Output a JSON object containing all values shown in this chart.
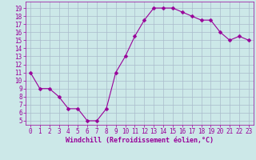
{
  "x": [
    0,
    1,
    2,
    3,
    4,
    5,
    6,
    7,
    8,
    9,
    10,
    11,
    12,
    13,
    14,
    15,
    16,
    17,
    18,
    19,
    20,
    21,
    22,
    23
  ],
  "y": [
    11,
    9,
    9,
    8,
    6.5,
    6.5,
    5,
    5,
    6.5,
    11,
    13,
    15.5,
    17.5,
    19,
    19,
    19,
    18.5,
    18,
    17.5,
    17.5,
    16,
    15,
    15.5,
    15
  ],
  "line_color": "#990099",
  "marker_color": "#990099",
  "bg_color": "#cce8e8",
  "grid_color": "#aabbcc",
  "xlabel": "Windchill (Refroidissement éolien,°C)",
  "xlabel_color": "#990099",
  "tick_color": "#990099",
  "ylim": [
    4.5,
    19.8
  ],
  "xlim": [
    -0.5,
    23.5
  ],
  "yticks": [
    5,
    6,
    7,
    8,
    9,
    10,
    11,
    12,
    13,
    14,
    15,
    16,
    17,
    18,
    19
  ],
  "xticks": [
    0,
    1,
    2,
    3,
    4,
    5,
    6,
    7,
    8,
    9,
    10,
    11,
    12,
    13,
    14,
    15,
    16,
    17,
    18,
    19,
    20,
    21,
    22,
    23
  ],
  "font_size": 5.5,
  "marker_size": 2.5,
  "linewidth": 0.8
}
